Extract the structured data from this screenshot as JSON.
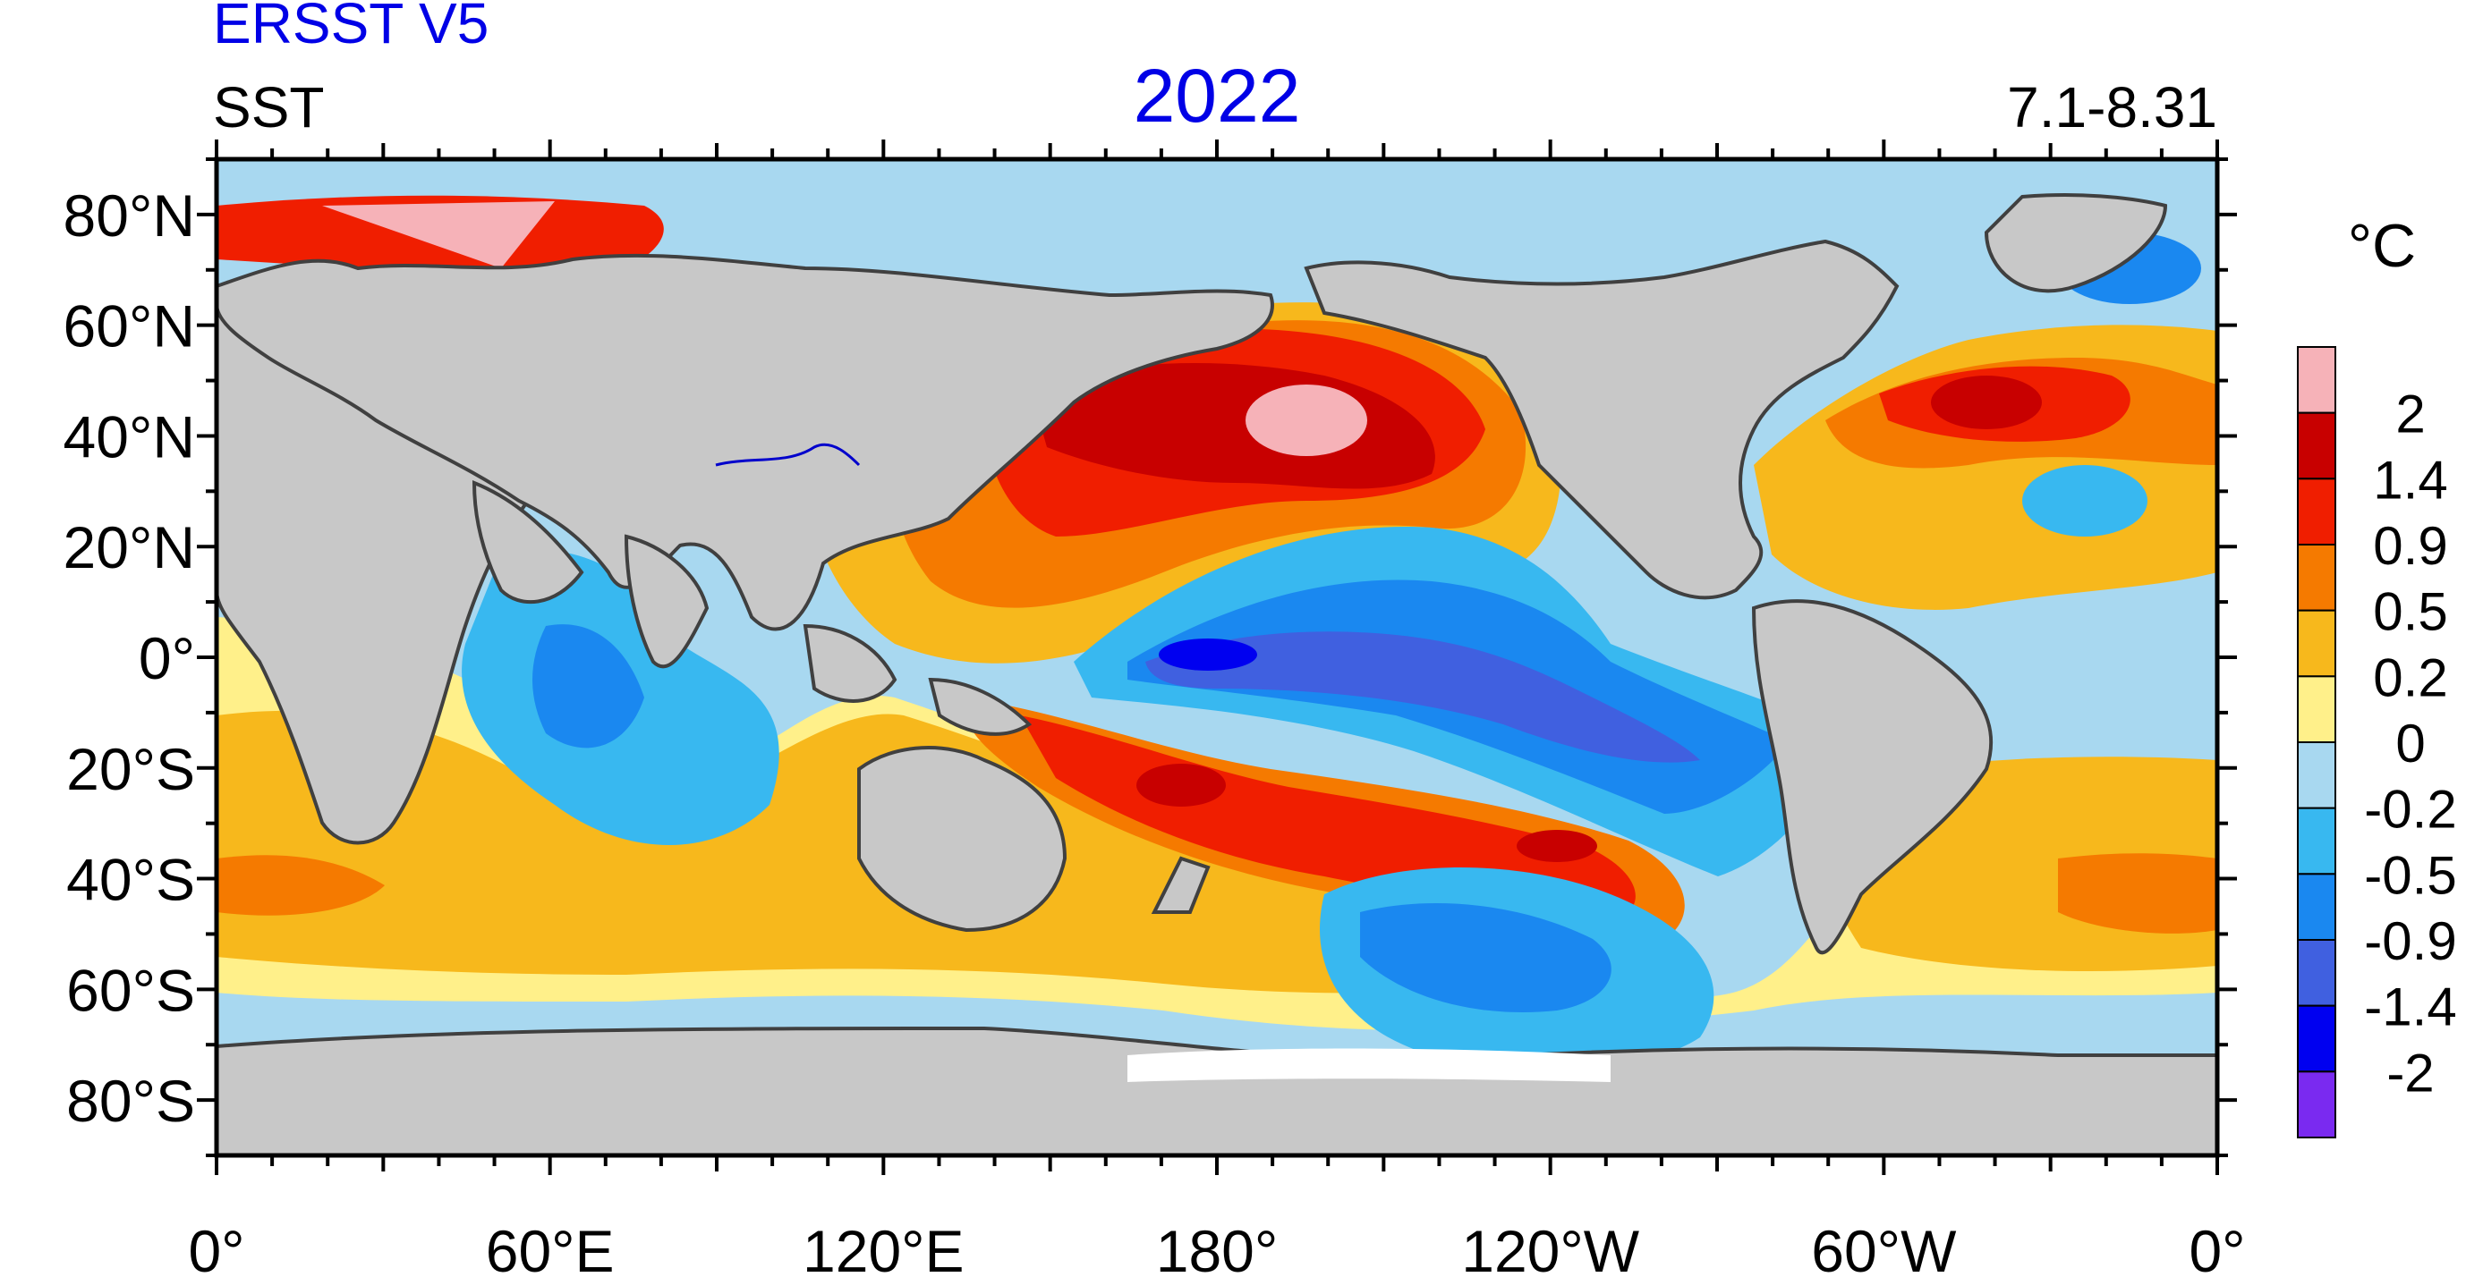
{
  "dataset": "ERSST V5",
  "variable": "SST",
  "year": "2022",
  "period": "7.1-8.31",
  "units": "°C",
  "colors": {
    "dataset_text": "#0000e6",
    "year_text": "#0000e6",
    "land": "#c8c8c8",
    "coast": "#404040",
    "river": "#0000cc",
    "frame": "#000000"
  },
  "lat_labels": [
    "80°N",
    "60°N",
    "40°N",
    "20°N",
    "0°",
    "20°S",
    "40°S",
    "60°S",
    "80°S"
  ],
  "lon_labels": [
    "0°",
    "60°E",
    "120°E",
    "180°",
    "120°W",
    "60°W",
    "0°"
  ],
  "colorbar": {
    "labels": [
      "2",
      "1.4",
      "0.9",
      "0.5",
      "0.2",
      "0",
      "-0.2",
      "-0.5",
      "-0.9",
      "-1.4",
      "-2"
    ],
    "colors": [
      "#f6b2b8",
      "#c80000",
      "#f01e00",
      "#f57a00",
      "#f7b81c",
      "#fff08a",
      "#a8d8f0",
      "#38b8f0",
      "#1a88f0",
      "#4060e0",
      "#0000f0",
      "#7a2af0"
    ]
  }
}
